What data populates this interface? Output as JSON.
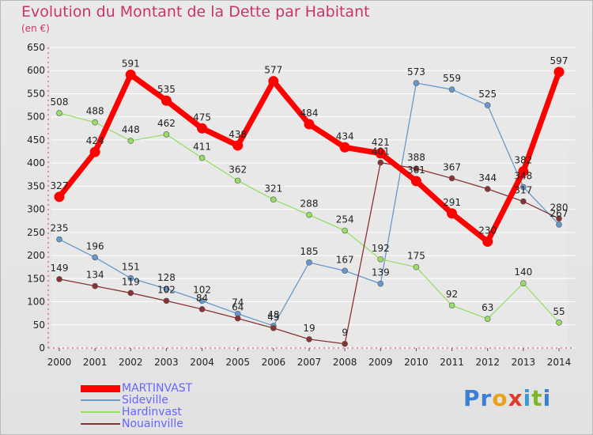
{
  "title": "Evolution du Montant de la Dette par Habitant",
  "subtitle": "(en €)",
  "logo": {
    "letters": [
      {
        "ch": "P",
        "color": "#3a7fd5"
      },
      {
        "ch": "r",
        "color": "#3a7fd5"
      },
      {
        "ch": "o",
        "color": "#e8a21a"
      },
      {
        "ch": "x",
        "color": "#e03a2a"
      },
      {
        "ch": "i",
        "color": "#3a9ad5"
      },
      {
        "ch": "t",
        "color": "#7ab82a"
      },
      {
        "ch": "i",
        "color": "#3a7fd5"
      }
    ]
  },
  "chart_data": {
    "type": "line",
    "title": "Evolution du Montant de la Dette par Habitant",
    "ylabel": "(en €)",
    "xlabel": "",
    "x": [
      2000,
      2001,
      2002,
      2003,
      2004,
      2005,
      2006,
      2007,
      2008,
      2009,
      2010,
      2011,
      2012,
      2013,
      2014
    ],
    "x_tick_labels": [
      "2000",
      "2001",
      "2002",
      "2003",
      "2004",
      "2005",
      "2006",
      "2007",
      "2008",
      "2009",
      "2010",
      "2011",
      "2012",
      "2013",
      "2014"
    ],
    "ylim": [
      0,
      650
    ],
    "y_ticks": [
      0,
      50,
      100,
      150,
      200,
      250,
      300,
      350,
      400,
      450,
      500,
      550,
      600,
      650
    ],
    "grid": "horizontal",
    "legend_position": "bottom-left",
    "series": [
      {
        "name": "MARTINVAST",
        "color": "#ff0000",
        "thick": true,
        "values": [
          327,
          424,
          591,
          535,
          475,
          438,
          577,
          484,
          434,
          421,
          361,
          291,
          230,
          382,
          597
        ],
        "labels": [
          "327",
          "424",
          "591",
          "535",
          "475",
          "438",
          "577",
          "484",
          "434",
          "421",
          "361",
          "291",
          "230",
          "382",
          "597"
        ]
      },
      {
        "name": "Sideville",
        "color": "#6699cc",
        "thick": false,
        "values": [
          235,
          196,
          151,
          128,
          102,
          74,
          48,
          185,
          167,
          139,
          573,
          559,
          525,
          348,
          267
        ],
        "labels": [
          "235",
          "196",
          "151",
          "128",
          "102",
          "74",
          "48",
          "185",
          "167",
          "139",
          "573",
          "559",
          "525",
          "348",
          "267"
        ]
      },
      {
        "name": "Hardinvast",
        "color": "#99dd66",
        "thick": false,
        "values": [
          508,
          488,
          448,
          462,
          411,
          362,
          321,
          288,
          254,
          192,
          175,
          92,
          63,
          140,
          55
        ],
        "labels": [
          "508",
          "488",
          "448",
          "462",
          "411",
          "362",
          "321",
          "288",
          "254",
          "192",
          "175",
          "92",
          "63",
          "140",
          "55"
        ]
      },
      {
        "name": "Nouainville",
        "color": "#883333",
        "thick": false,
        "values": [
          149,
          134,
          119,
          102,
          84,
          64,
          43,
          19,
          9,
          401,
          388,
          367,
          344,
          317,
          280
        ],
        "labels": [
          "149",
          "134",
          "119",
          "102",
          "84",
          "64",
          "43",
          "19",
          "9",
          "401",
          "388",
          "367",
          "344",
          "317",
          "280"
        ]
      }
    ]
  }
}
